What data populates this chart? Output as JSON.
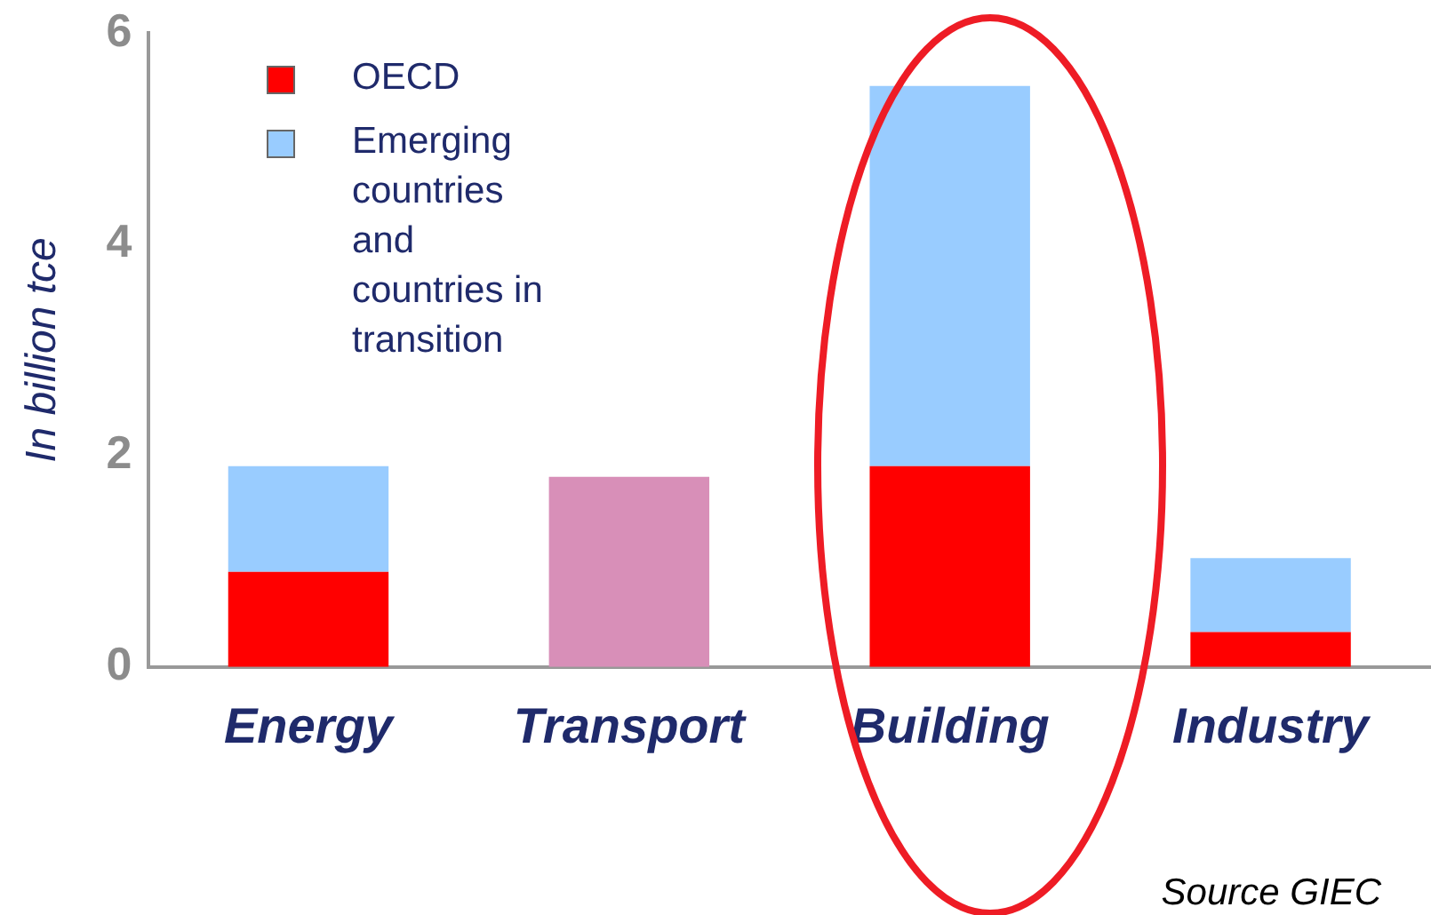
{
  "chart_data": {
    "type": "bar",
    "stacked": true,
    "ylabel": "In billion tce",
    "categories": [
      "Energy",
      "Transport",
      "Building",
      "Industry"
    ],
    "series": [
      {
        "name": "OECD",
        "color": "#ff0000",
        "values": [
          0.9,
          null,
          1.9,
          0.33
        ]
      },
      {
        "name": "Emerging countries and countries in transition",
        "color": "#99ccff",
        "values": [
          1.0,
          null,
          3.6,
          0.7
        ]
      },
      {
        "color": "#d88fb8",
        "values": [
          null,
          1.8,
          null,
          null
        ]
      }
    ],
    "ylim": [
      0,
      6
    ],
    "yticks": [
      0,
      2,
      4,
      6
    ],
    "grid": false,
    "legend": "top left",
    "annotations": [
      "Source GIEC"
    ]
  }
}
